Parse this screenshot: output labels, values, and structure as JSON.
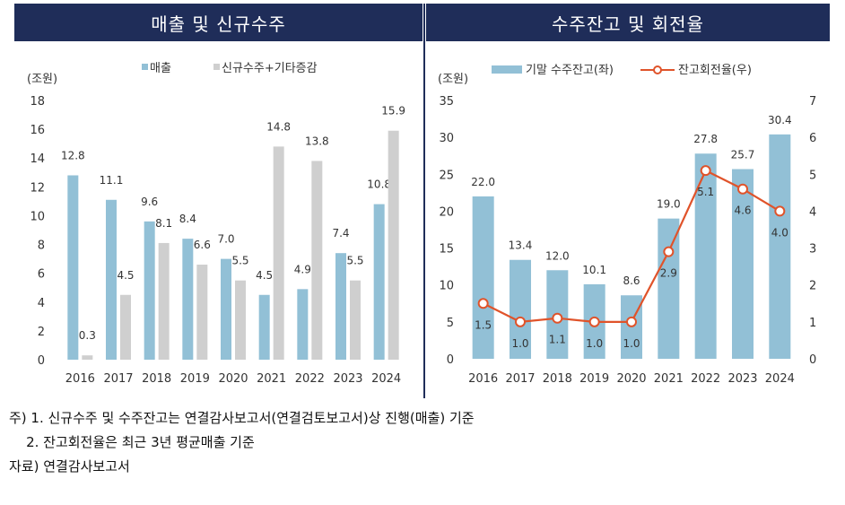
{
  "headers": {
    "left": "매출 및 신규수주",
    "right": "수주잔고 및 회전율"
  },
  "colors": {
    "header_bg": "#1f2d59",
    "bar_blue": "#92c0d6",
    "bar_gray": "#cfcfcf",
    "line_orange": "#e0532a"
  },
  "chart_data": [
    {
      "type": "bar",
      "unit_label": "(조원)",
      "categories": [
        "2016",
        "2017",
        "2018",
        "2019",
        "2020",
        "2021",
        "2022",
        "2023",
        "2024"
      ],
      "series": [
        {
          "name": "매출",
          "values": [
            12.8,
            11.1,
            9.6,
            8.4,
            7.0,
            4.5,
            4.9,
            7.4,
            10.8
          ],
          "labels": [
            "12.8",
            "11.1",
            "9.6",
            "8.4",
            "7.0",
            "4.5",
            "4.9",
            "7.4",
            "10.8"
          ]
        },
        {
          "name": "신규수주+기타증감",
          "values": [
            0.3,
            4.5,
            8.1,
            6.6,
            5.5,
            14.8,
            13.8,
            5.5,
            15.9
          ],
          "labels": [
            "0.3",
            "4.5",
            "8.1",
            "6.6",
            "5.5",
            "14.8",
            "13.8",
            "5.5",
            "15.9"
          ]
        }
      ],
      "ylim": [
        0,
        18
      ],
      "yticks": [
        "0",
        "2",
        "4",
        "6",
        "8",
        "10",
        "12",
        "14",
        "16",
        "18"
      ],
      "grid": false,
      "legend_position": "top"
    },
    {
      "type": "bar+line",
      "unit_label": "(조원)",
      "categories": [
        "2016",
        "2017",
        "2018",
        "2019",
        "2020",
        "2021",
        "2022",
        "2023",
        "2024"
      ],
      "series": [
        {
          "name": "기말 수주잔고(좌)",
          "axis": "left",
          "values": [
            22.0,
            13.4,
            12.0,
            10.1,
            8.6,
            19.0,
            27.8,
            25.7,
            30.4
          ],
          "labels": [
            "22.0",
            "13.4",
            "12.0",
            "10.1",
            "8.6",
            "19.0",
            "27.8",
            "25.7",
            "30.4"
          ]
        },
        {
          "name": "잔고회전율(우)",
          "axis": "right",
          "values": [
            1.5,
            1.0,
            1.1,
            1.0,
            1.0,
            2.9,
            5.1,
            4.6,
            4.0
          ],
          "labels": [
            "1.5",
            "1.0",
            "1.1",
            "1.0",
            "1.0",
            "2.9",
            "5.1",
            "4.6",
            "4.0"
          ]
        }
      ],
      "ylim_left": [
        0,
        35
      ],
      "ylim_right": [
        0,
        7
      ],
      "yticks_left": [
        "0",
        "5",
        "10",
        "15",
        "20",
        "25",
        "30",
        "35"
      ],
      "yticks_right": [
        "0",
        "1",
        "2",
        "3",
        "4",
        "5",
        "6",
        "7"
      ],
      "grid": false,
      "legend_position": "top"
    }
  ],
  "notes": {
    "line1": "주) 1. 신규수주 및 수주잔고는 연결감사보고서(연결검토보고서)상 진행(매출) 기준",
    "line2": "    2. 잔고회전율은 최근 3년 평균매출 기준",
    "line3": "자료) 연결감사보고서"
  }
}
